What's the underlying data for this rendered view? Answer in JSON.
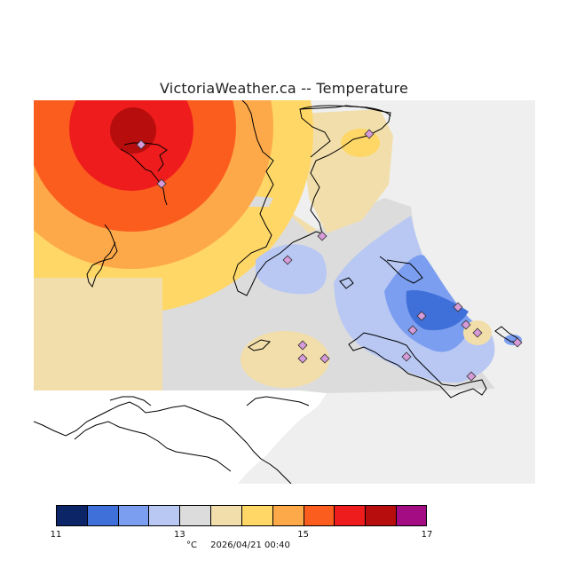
{
  "title": "VictoriaWeather.ca -- Temperature",
  "map": {
    "name": "temperature-contour-map",
    "station_marker": "diamond-icon",
    "colors": {
      "outside_data": "#efefef",
      "coastline": "#000000",
      "land_blank": "#ffffff"
    }
  },
  "colorbar": {
    "min": 11,
    "max": 17,
    "step": 0.5,
    "colors": [
      "#0b2566",
      "#3f6fd8",
      "#7c9ef0",
      "#b8c8f3",
      "#dcdcdc",
      "#f2deaa",
      "#fed767",
      "#fda94a",
      "#fb5d1f",
      "#ee1c1c",
      "#b70d0d",
      "#a40c84"
    ],
    "tick_labels": [
      "11",
      "13",
      "15",
      "17"
    ],
    "tick_values": [
      11,
      13,
      15,
      17
    ],
    "unit": "°C",
    "timestamp": "2026/04/21 00:40"
  }
}
